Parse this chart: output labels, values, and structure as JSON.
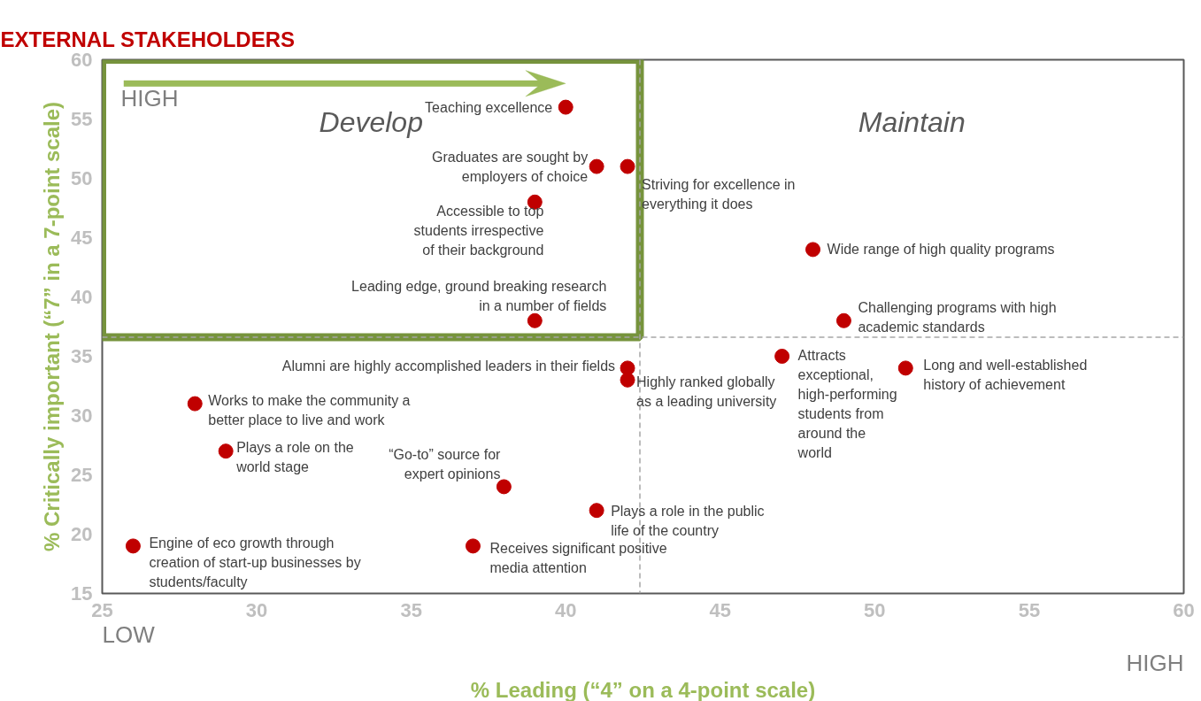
{
  "chart_data": {
    "type": "scatter",
    "title": "EXTERNAL STAKEHOLDERS",
    "xlabel": "% Leading (“4” on a 4-point scale)",
    "ylabel": "% Critically important (“7” in a 7-point scale)",
    "x": [
      40,
      41,
      42,
      39,
      39,
      48,
      49,
      47,
      51,
      42,
      42,
      28,
      29,
      38,
      41,
      26,
      37
    ],
    "series": [
      {
        "color": "#c00000",
        "values": [
          56,
          51,
          51,
          48,
          38,
          44,
          38,
          35,
          34,
          34,
          33,
          31,
          27,
          24,
          22,
          19,
          19
        ]
      }
    ],
    "xlim": [
      25,
      60
    ],
    "ylim": [
      15,
      60
    ],
    "xticks": [
      25,
      30,
      35,
      40,
      45,
      50,
      55,
      60
    ],
    "yticks": [
      15,
      20,
      25,
      30,
      35,
      40,
      45,
      50,
      55,
      60
    ],
    "grid": false,
    "marker": "circle",
    "ref_lines": [
      {
        "axis": "x",
        "value": 42.4,
        "color": "#a6a6a6",
        "line_style": "dashed"
      },
      {
        "axis": "y",
        "value": 36.6,
        "color": "#a6a6a6",
        "line_style": "dashed"
      }
    ],
    "annotations": [
      "HIGH",
      "Develop",
      "Maintain",
      "LOW",
      "HIGH",
      {
        "text": "Teaching excellence",
        "x": 40,
        "y": 56
      },
      {
        "text": "Graduates are sought by employers of choice",
        "x": 41,
        "y": 51
      },
      {
        "text": "Striving for excellence in everything it does",
        "x": 42,
        "y": 51
      },
      {
        "text": "Accessible to top students irrespective of their background",
        "x": 39,
        "y": 48
      },
      {
        "text": "Leading edge, ground breaking research in a number of fields",
        "x": 39,
        "y": 38
      },
      {
        "text": "Wide range of high quality programs",
        "x": 48,
        "y": 44
      },
      {
        "text": "Challenging programs with high academic standards",
        "x": 49,
        "y": 38
      },
      {
        "text": "Attracts exceptional, high-performing students from around the world",
        "x": 47,
        "y": 35
      },
      {
        "text": "Long and well-established history of achievement",
        "x": 51,
        "y": 34
      },
      {
        "text": "Alumni are highly accomplished leaders in their fields",
        "x": 42,
        "y": 34
      },
      {
        "text": "Highly ranked globally as a leading university",
        "x": 42,
        "y": 33
      },
      {
        "text": "Works to make the community a better place to live and work",
        "x": 28,
        "y": 31
      },
      {
        "text": "Plays a role on the world stage",
        "x": 29,
        "y": 27
      },
      {
        "text": "“Go-to” source for expert opinions",
        "x": 38,
        "y": 24
      },
      {
        "text": "Plays a role in the public life of the country",
        "x": 41,
        "y": 22
      },
      {
        "text": "Engine of eco growth through creation of start-up businesses by students/faculty",
        "x": 26,
        "y": 19
      },
      {
        "text": "Receives significant positive media attention",
        "x": 37,
        "y": 19
      }
    ]
  }
}
